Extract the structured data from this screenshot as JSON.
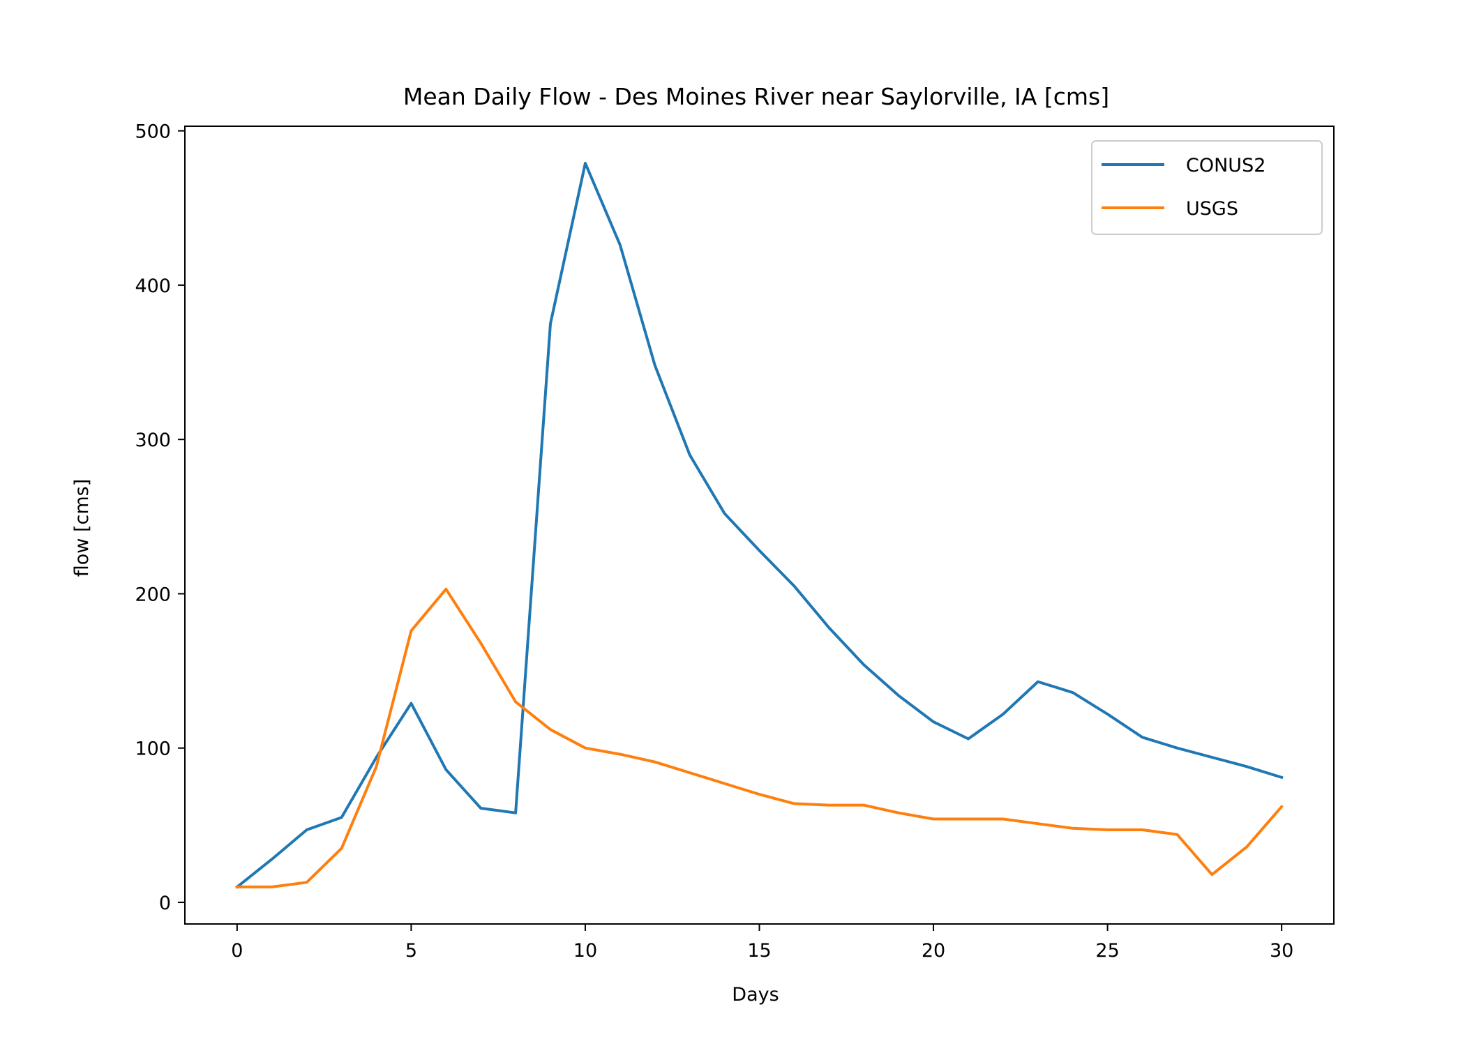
{
  "chart_data": {
    "type": "line",
    "title": "Mean Daily Flow - Des Moines River near Saylorville, IA [cms]",
    "xlabel": "Days",
    "ylabel": "flow [cms]",
    "xlim": [
      -1.5,
      31.5
    ],
    "ylim": [
      -14,
      503
    ],
    "xticks": [
      0,
      5,
      10,
      15,
      20,
      25,
      30
    ],
    "yticks": [
      0,
      100,
      200,
      300,
      400,
      500
    ],
    "grid": false,
    "legend_position": "top-right",
    "x": [
      0,
      1,
      2,
      3,
      4,
      5,
      6,
      7,
      8,
      9,
      10,
      11,
      12,
      13,
      14,
      15,
      16,
      17,
      18,
      19,
      20,
      21,
      22,
      23,
      24,
      25,
      26,
      27,
      28,
      29,
      30
    ],
    "series": [
      {
        "name": "CONUS2",
        "color": "#1f77b4",
        "values": [
          10,
          28,
          47,
          55,
          94,
          129,
          86,
          61,
          58,
          375,
          479,
          426,
          348,
          290,
          252,
          228,
          205,
          178,
          154,
          134,
          117,
          106,
          122,
          143,
          136,
          122,
          107,
          100,
          94,
          88,
          81
        ]
      },
      {
        "name": "USGS",
        "color": "#ff7f0e",
        "values": [
          10,
          10,
          13,
          35,
          88,
          176,
          203,
          168,
          130,
          112,
          100,
          96,
          91,
          84,
          77,
          70,
          64,
          63,
          63,
          58,
          54,
          54,
          54,
          51,
          48,
          47,
          47,
          44,
          18,
          36,
          62
        ]
      }
    ]
  }
}
